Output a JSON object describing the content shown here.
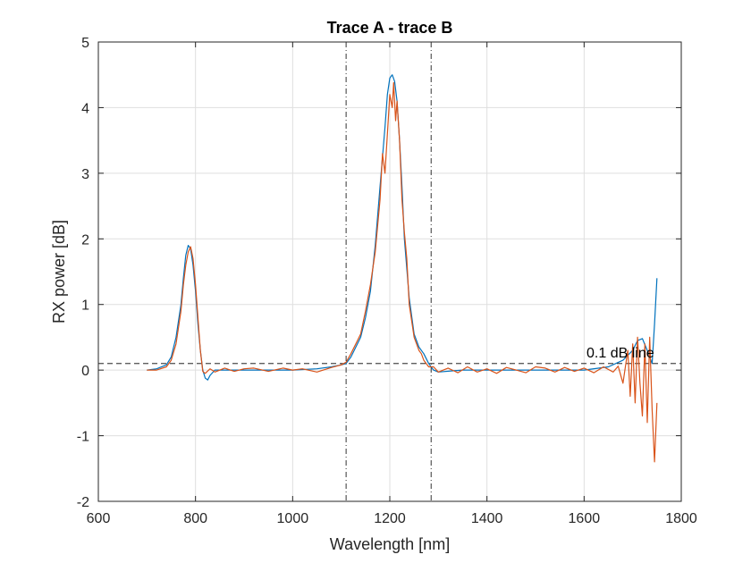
{
  "chart_data": {
    "type": "line",
    "title": "Trace A - trace B",
    "xlabel": "Wavelength [nm]",
    "ylabel": "RX power [dB]",
    "xlim": [
      600,
      1800
    ],
    "ylim": [
      -2,
      5
    ],
    "xticks": [
      600,
      800,
      1000,
      1200,
      1400,
      1600,
      1800
    ],
    "yticks": [
      -2,
      -1,
      0,
      1,
      2,
      3,
      4,
      5
    ],
    "grid": true,
    "legend": "none",
    "colors": {
      "series1": "#0072BD",
      "series2": "#D95319",
      "reference": "#000000"
    },
    "reference_lines": {
      "horizontal": [
        {
          "y": 0.1,
          "label": "0.1 dB line",
          "style": "dashed"
        }
      ],
      "vertical": [
        {
          "x": 1110,
          "style": "dash-dot"
        },
        {
          "x": 1285,
          "style": "dash-dot"
        }
      ]
    },
    "series": [
      {
        "color": "#0072BD",
        "x": [
          700,
          720,
          740,
          750,
          760,
          770,
          775,
          780,
          785,
          790,
          795,
          800,
          805,
          810,
          815,
          820,
          825,
          830,
          840,
          850,
          900,
          950,
          1000,
          1050,
          1080,
          1100,
          1110,
          1120,
          1130,
          1140,
          1150,
          1160,
          1170,
          1180,
          1190,
          1195,
          1200,
          1205,
          1210,
          1215,
          1220,
          1225,
          1230,
          1240,
          1250,
          1260,
          1270,
          1280,
          1290,
          1300,
          1350,
          1400,
          1450,
          1500,
          1550,
          1600,
          1650,
          1680,
          1700,
          1710,
          1720,
          1730,
          1740,
          1745,
          1750
        ],
        "y": [
          0.0,
          0.02,
          0.08,
          0.2,
          0.5,
          1.0,
          1.4,
          1.75,
          1.9,
          1.85,
          1.6,
          1.2,
          0.7,
          0.3,
          0.0,
          -0.12,
          -0.15,
          -0.08,
          0.0,
          0.0,
          0.0,
          0.0,
          0.0,
          0.02,
          0.05,
          0.08,
          0.1,
          0.2,
          0.35,
          0.5,
          0.8,
          1.2,
          1.9,
          2.8,
          3.7,
          4.2,
          4.45,
          4.5,
          4.4,
          4.1,
          3.5,
          2.8,
          2.0,
          1.1,
          0.55,
          0.35,
          0.25,
          0.1,
          0.0,
          -0.03,
          0.0,
          0.0,
          0.0,
          0.0,
          0.0,
          0.0,
          0.05,
          0.15,
          0.3,
          0.45,
          0.48,
          0.3,
          0.1,
          0.7,
          1.4
        ]
      },
      {
        "color": "#D95319",
        "x": [
          700,
          720,
          740,
          750,
          760,
          770,
          775,
          780,
          785,
          790,
          795,
          800,
          805,
          810,
          815,
          820,
          830,
          840,
          860,
          880,
          900,
          920,
          950,
          980,
          1000,
          1020,
          1050,
          1080,
          1100,
          1110,
          1120,
          1130,
          1140,
          1150,
          1160,
          1170,
          1180,
          1185,
          1190,
          1195,
          1200,
          1205,
          1208,
          1212,
          1215,
          1220,
          1225,
          1230,
          1235,
          1240,
          1250,
          1260,
          1265,
          1270,
          1280,
          1290,
          1300,
          1320,
          1340,
          1360,
          1380,
          1400,
          1420,
          1440,
          1460,
          1480,
          1500,
          1520,
          1540,
          1560,
          1580,
          1600,
          1620,
          1640,
          1660,
          1670,
          1680,
          1690,
          1695,
          1700,
          1705,
          1710,
          1715,
          1720,
          1725,
          1730,
          1735,
          1740,
          1745,
          1750
        ],
        "y": [
          0.0,
          0.0,
          0.05,
          0.15,
          0.4,
          0.9,
          1.3,
          1.6,
          1.8,
          1.88,
          1.7,
          1.3,
          0.8,
          0.3,
          -0.02,
          -0.05,
          0.02,
          -0.03,
          0.03,
          -0.02,
          0.02,
          0.03,
          -0.02,
          0.03,
          0.0,
          0.02,
          -0.03,
          0.04,
          0.08,
          0.12,
          0.25,
          0.4,
          0.55,
          0.9,
          1.3,
          1.8,
          2.6,
          3.3,
          3.0,
          3.6,
          4.2,
          4.0,
          4.38,
          3.8,
          4.1,
          3.5,
          2.6,
          2.1,
          1.7,
          1.0,
          0.5,
          0.3,
          0.25,
          0.15,
          0.05,
          0.05,
          -0.03,
          0.03,
          -0.04,
          0.05,
          -0.03,
          0.02,
          -0.05,
          0.04,
          0.0,
          -0.04,
          0.05,
          0.03,
          -0.03,
          0.04,
          -0.02,
          0.03,
          -0.04,
          0.05,
          -0.03,
          0.06,
          -0.2,
          0.3,
          -0.4,
          0.4,
          -0.5,
          0.5,
          -0.2,
          -0.7,
          0.4,
          -0.8,
          0.5,
          -0.6,
          -1.4,
          -0.5
        ]
      }
    ]
  }
}
